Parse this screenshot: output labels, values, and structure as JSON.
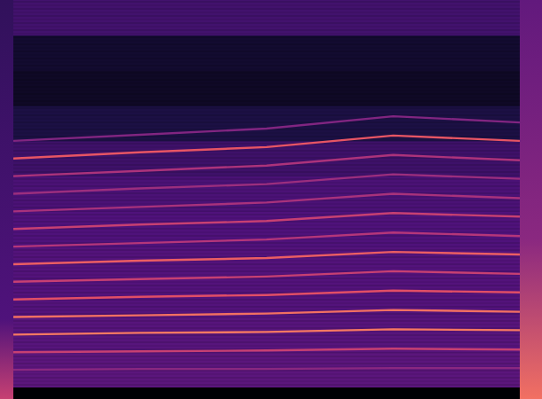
{
  "chart_data": {
    "type": "spectrogram",
    "tick_labels": false,
    "xlim": [
      0,
      1
    ],
    "ylim": [
      0,
      440
    ],
    "x": [
      0,
      0.25,
      0.5,
      0.75,
      1
    ],
    "background": {
      "bins": [
        0,
        40,
        80,
        120,
        160,
        200,
        240,
        280,
        320,
        360,
        400,
        440
      ],
      "levels": [
        0.28,
        0.27,
        0.26,
        0.26,
        0.25,
        0.24,
        0.21,
        0.13,
        0.07,
        0.09,
        0.22
      ]
    },
    "series": [
      {
        "values": [
          20,
          21,
          21,
          22,
          22
        ],
        "intensity": 0.4
      },
      {
        "values": [
          40,
          41,
          42,
          44,
          43
        ],
        "intensity": 0.55
      },
      {
        "values": [
          60,
          62,
          63,
          66,
          65
        ],
        "intensity": 0.72
      },
      {
        "values": [
          80,
          82,
          84,
          88,
          86
        ],
        "intensity": 0.7
      },
      {
        "values": [
          100,
          103,
          105,
          110,
          108
        ],
        "intensity": 0.62
      },
      {
        "values": [
          120,
          123,
          126,
          132,
          129
        ],
        "intensity": 0.55
      },
      {
        "values": [
          140,
          144,
          147,
          154,
          151
        ],
        "intensity": 0.66
      },
      {
        "values": [
          160,
          164,
          168,
          176,
          172
        ],
        "intensity": 0.5
      },
      {
        "values": [
          180,
          185,
          189,
          198,
          194
        ],
        "intensity": 0.55
      },
      {
        "values": [
          200,
          205,
          210,
          220,
          215
        ],
        "intensity": 0.47
      },
      {
        "values": [
          220,
          226,
          231,
          242,
          237
        ],
        "intensity": 0.44
      },
      {
        "values": [
          240,
          246,
          252,
          264,
          258
        ],
        "intensity": 0.48
      },
      {
        "values": [
          260,
          267,
          273,
          286,
          280
        ],
        "intensity": 0.64
      },
      {
        "values": [
          280,
          287,
          294,
          308,
          301
        ],
        "intensity": 0.38
      }
    ]
  }
}
